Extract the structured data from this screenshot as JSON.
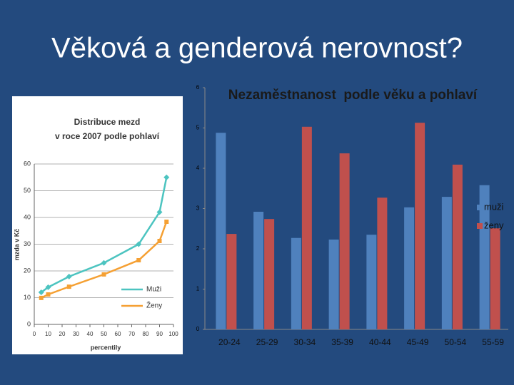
{
  "title": "Věková a genderová nerovnost?",
  "chart_data": [
    {
      "type": "line",
      "title": [
        "Distribuce mezd",
        "v roce 2007 podle pohlaví"
      ],
      "x_label": "percentily",
      "y_label": "mzda v Kč",
      "x": [
        5,
        10,
        25,
        50,
        75,
        90,
        95
      ],
      "series": [
        {
          "name": "Muži",
          "color": "#4cc4c0",
          "marker": "diamond",
          "values": [
            12,
            13.9,
            17.9,
            23,
            30,
            42,
            55
          ]
        },
        {
          "name": "Ženy",
          "color": "#f5a033",
          "marker": "square",
          "values": [
            9.9,
            11.2,
            14.1,
            18.7,
            24,
            31.2,
            38.4
          ]
        }
      ],
      "xlim": [
        0,
        100
      ],
      "xticks": [
        0,
        10,
        20,
        30,
        40,
        50,
        60,
        70,
        80,
        90,
        100
      ],
      "ylim": [
        0,
        60
      ],
      "yticks": [
        0,
        10,
        20,
        30,
        40,
        50,
        60
      ],
      "grid": true,
      "legend": "lower right"
    },
    {
      "type": "bar",
      "title": "Nezaměstnanost  podle věku a pohlaví",
      "categories": [
        "20-24",
        "25-29",
        "30-34",
        "35-39",
        "40-44",
        "45-49",
        "50-54",
        "55-59"
      ],
      "series": [
        {
          "name": "muži",
          "color": "#4f81bd",
          "values": [
            4.88,
            2.92,
            2.27,
            2.23,
            2.35,
            3.03,
            3.29,
            3.58
          ]
        },
        {
          "name": "ženy",
          "color": "#c0504d",
          "values": [
            2.37,
            2.74,
            5.03,
            4.37,
            3.27,
            5.13,
            4.09,
            2.51
          ]
        }
      ],
      "ylim": [
        0,
        6
      ],
      "yticks": [
        0,
        1,
        2,
        3,
        4,
        5,
        6
      ],
      "grid": false,
      "legend": "right"
    }
  ]
}
